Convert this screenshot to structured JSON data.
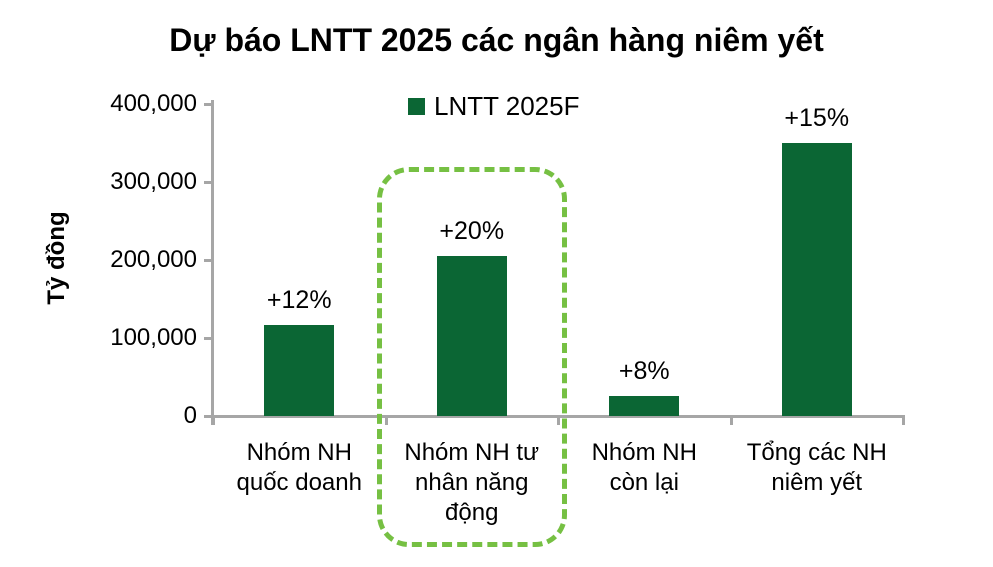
{
  "title": "Dự báo LNTT 2025 các ngân hàng niêm yết",
  "legend": {
    "label": "LNTT 2025F"
  },
  "y_axis": {
    "label": "Tỷ đồng",
    "tick_labels": [
      "400,000",
      "300,000",
      "200,000",
      "100,000",
      "0"
    ]
  },
  "colors": {
    "bar": "#0b6634",
    "highlight": "#76c043",
    "axis": "#a6a6a6",
    "text": "#000000"
  },
  "chart_data": {
    "type": "bar",
    "title": "Dự báo LNTT 2025 các ngân hàng niêm yết",
    "ylabel": "Tỷ đồng",
    "ylim": [
      0,
      400000
    ],
    "yticks": [
      0,
      100000,
      200000,
      300000,
      400000
    ],
    "categories": [
      "Nhóm NH quốc doanh",
      "Nhóm NH tư nhân năng động",
      "Nhóm NH còn lại",
      "Tổng các NH niêm yết"
    ],
    "category_lines": [
      [
        "Nhóm NH",
        "quốc doanh"
      ],
      [
        "Nhóm NH tư",
        "nhân năng",
        "động"
      ],
      [
        "Nhóm NH",
        "còn lại"
      ],
      [
        "Tổng các NH",
        "niêm yết"
      ]
    ],
    "series": [
      {
        "name": "LNTT 2025F",
        "values": [
          117000,
          205000,
          26000,
          350000
        ]
      }
    ],
    "bar_growth_labels": [
      "+12%",
      "+20%",
      "+8%",
      "+15%"
    ],
    "legend_position": "top",
    "grid": false,
    "highlighted_category_index": 1,
    "highlight_style": "dashed-green-rounded-box"
  }
}
